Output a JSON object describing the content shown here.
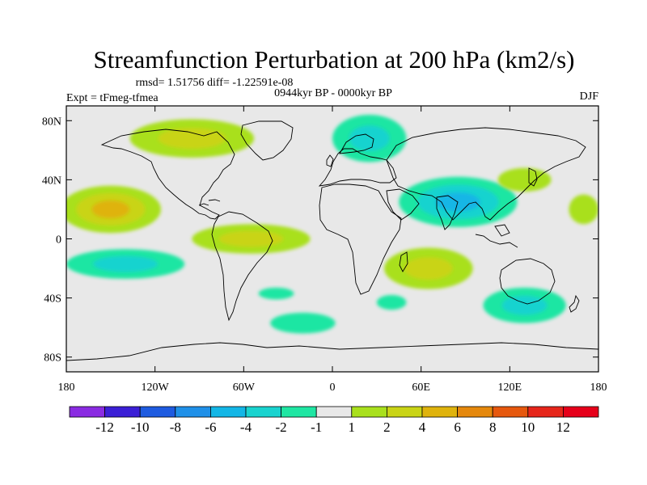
{
  "chart_data": {
    "type": "heatmap",
    "title": "Streamfunction Perturbation at 200 hPa (km2/s)",
    "stats": "rmsd= 1.51756  diff= -1.22591e-08",
    "left_label": "Expt = tFmeg-tfmea",
    "center_label": "0944kyr BP - 0000kyr BP",
    "right_label": "DJF",
    "x_range": [
      -180,
      180
    ],
    "y_range": [
      -90,
      90
    ],
    "x_ticks": [
      {
        "value": -180,
        "label": "180"
      },
      {
        "value": -120,
        "label": "120W"
      },
      {
        "value": -60,
        "label": "60W"
      },
      {
        "value": 0,
        "label": "0"
      },
      {
        "value": 60,
        "label": "60E"
      },
      {
        "value": 120,
        "label": "120E"
      },
      {
        "value": 180,
        "label": "180"
      }
    ],
    "y_ticks": [
      {
        "value": 80,
        "label": "80N"
      },
      {
        "value": 40,
        "label": "40N"
      },
      {
        "value": 0,
        "label": "0"
      },
      {
        "value": -40,
        "label": "40S"
      },
      {
        "value": -80,
        "label": "80S"
      }
    ],
    "colorbar": {
      "levels": [
        -12,
        -10,
        -8,
        -6,
        -4,
        -2,
        -1,
        1,
        2,
        4,
        6,
        8,
        10,
        12
      ],
      "labels": [
        "-12",
        "-10",
        "-8",
        "-6",
        "-4",
        "-2",
        "-1",
        "1",
        "2",
        "4",
        "6",
        "8",
        "10",
        "12"
      ],
      "colors": [
        "#8a2be2",
        "#3b1fd6",
        "#1e5be0",
        "#1f90e8",
        "#13b6e6",
        "#19d3cf",
        "#1fe6a3",
        "#e8e8e8",
        "#a9e01d",
        "#c9d416",
        "#dfb30d",
        "#e5880c",
        "#e6580e",
        "#e6261a",
        "#e6001a"
      ]
    },
    "regions": [
      {
        "name": "north-america-positive",
        "lon": -95,
        "lat": 68,
        "rlon": 42,
        "rlat": 13,
        "value": 2.5
      },
      {
        "name": "north-pacific-positive",
        "lon": -150,
        "lat": 20,
        "rlon": 34,
        "rlat": 16,
        "value": 5
      },
      {
        "name": "tropical-atlantic-positive",
        "lon": -55,
        "lat": 0,
        "rlon": 40,
        "rlat": 10,
        "value": 2
      },
      {
        "name": "south-pacific-negative",
        "lon": -140,
        "lat": -17,
        "rlon": 40,
        "rlat": 10,
        "value": -3
      },
      {
        "name": "south-atlantic-negative",
        "lon": -38,
        "lat": -37,
        "rlon": 12,
        "rlat": 4,
        "value": -1.5
      },
      {
        "name": "southern-ocean-negative",
        "lon": -20,
        "lat": -57,
        "rlon": 22,
        "rlat": 7,
        "value": -1.5
      },
      {
        "name": "europe-arctic-negative",
        "lon": 25,
        "lat": 68,
        "rlon": 25,
        "rlat": 16,
        "value": -3
      },
      {
        "name": "asia-negative",
        "lon": 85,
        "lat": 25,
        "rlon": 40,
        "rlat": 17,
        "value": -4
      },
      {
        "name": "west-pacific-positive",
        "lon": 130,
        "lat": 40,
        "rlon": 18,
        "rlat": 8,
        "value": 1.5
      },
      {
        "name": "indian-ocean-positive",
        "lon": 65,
        "lat": -20,
        "rlon": 30,
        "rlat": 14,
        "value": 3
      },
      {
        "name": "south-indian-negative",
        "lon": 40,
        "lat": -43,
        "rlon": 10,
        "rlat": 5,
        "value": -1.5
      },
      {
        "name": "australia-south-negative",
        "lon": 130,
        "lat": -45,
        "rlon": 28,
        "rlat": 12,
        "value": -3
      },
      {
        "name": "east-pacific-positive",
        "lon": 170,
        "lat": 20,
        "rlon": 10,
        "rlat": 10,
        "value": 1.5
      }
    ]
  }
}
